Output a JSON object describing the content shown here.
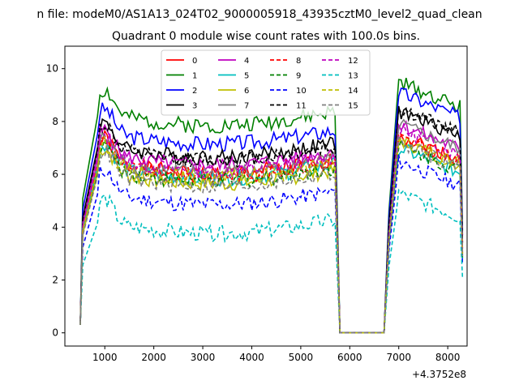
{
  "chart_data": {
    "type": "line",
    "suptitle": "n file: modeM0/AS1A13_024T02_9000005918_43935cztM0_level2_quad_clean",
    "title": "Quadrant 0 module wise count rates with 100.0s bins.",
    "xlabel": "",
    "ylabel": "",
    "x_offset_label": "+4.3752e8",
    "xlim": [
      185,
      8395
    ],
    "ylim": [
      -0.5,
      10.85
    ],
    "xticks": [
      1000,
      2000,
      3000,
      4000,
      5000,
      6000,
      7000,
      8000
    ],
    "yticks": [
      0,
      2,
      4,
      6,
      8,
      10
    ],
    "grid": false,
    "legend": {
      "placement": "top-center",
      "columns": 4
    },
    "segments": [
      {
        "start": 500,
        "end": 5700,
        "gap_after": true
      },
      {
        "start": 5800,
        "end": 6700,
        "zero": true
      },
      {
        "start": 6800,
        "end": 8300
      }
    ],
    "series": [
      {
        "name": "0",
        "color": "#ff0000",
        "dash": "solid",
        "a": 6.5,
        "b": 7.2,
        "seed": 1
      },
      {
        "name": "1",
        "color": "#008000",
        "dash": "solid",
        "a": 8.3,
        "b": 9.2,
        "seed": 2
      },
      {
        "name": "2",
        "color": "#0000ff",
        "dash": "solid",
        "a": 7.6,
        "b": 8.8,
        "seed": 3
      },
      {
        "name": "3",
        "color": "#000000",
        "dash": "solid",
        "a": 7.1,
        "b": 8.1,
        "seed": 4
      },
      {
        "name": "4",
        "color": "#bf00bf",
        "dash": "solid",
        "a": 6.8,
        "b": 7.6,
        "seed": 5
      },
      {
        "name": "5",
        "color": "#00bfbf",
        "dash": "solid",
        "a": 6.3,
        "b": 6.7,
        "seed": 6
      },
      {
        "name": "6",
        "color": "#bfbf00",
        "dash": "solid",
        "a": 6.1,
        "b": 7.0,
        "seed": 7
      },
      {
        "name": "7",
        "color": "#7f7f7f",
        "dash": "solid",
        "a": 6.5,
        "b": 7.6,
        "seed": 8
      },
      {
        "name": "8",
        "color": "#ff0000",
        "dash": "dashed",
        "a": 6.4,
        "b": 7.1,
        "seed": 9
      },
      {
        "name": "9",
        "color": "#008000",
        "dash": "dashed",
        "a": 6.2,
        "b": 6.8,
        "seed": 10
      },
      {
        "name": "10",
        "color": "#0000ff",
        "dash": "dashed",
        "a": 5.3,
        "b": 6.2,
        "seed": 11
      },
      {
        "name": "11",
        "color": "#000000",
        "dash": "dashed",
        "a": 7.0,
        "b": 8.2,
        "seed": 12
      },
      {
        "name": "12",
        "color": "#bf00bf",
        "dash": "dashed",
        "a": 6.6,
        "b": 7.4,
        "seed": 13
      },
      {
        "name": "13",
        "color": "#00bfbf",
        "dash": "dashed",
        "a": 4.2,
        "b": 5.0,
        "seed": 14
      },
      {
        "name": "14",
        "color": "#bfbf00",
        "dash": "dashed",
        "a": 6.3,
        "b": 7.0,
        "seed": 15
      },
      {
        "name": "15",
        "color": "#7f7f7f",
        "dash": "dashed",
        "a": 6.0,
        "b": 6.9,
        "seed": 16
      }
    ]
  }
}
